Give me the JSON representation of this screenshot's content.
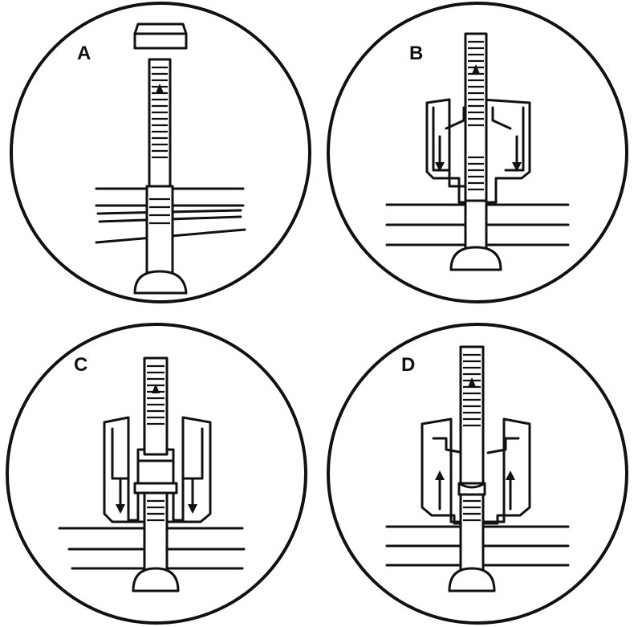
{
  "panels": [
    {
      "id": "A",
      "label": "A"
    },
    {
      "id": "B",
      "label": "B"
    },
    {
      "id": "C",
      "label": "C"
    },
    {
      "id": "D",
      "label": "D"
    }
  ],
  "colors": {
    "ink": "#111111",
    "paper": "#ffffff"
  }
}
